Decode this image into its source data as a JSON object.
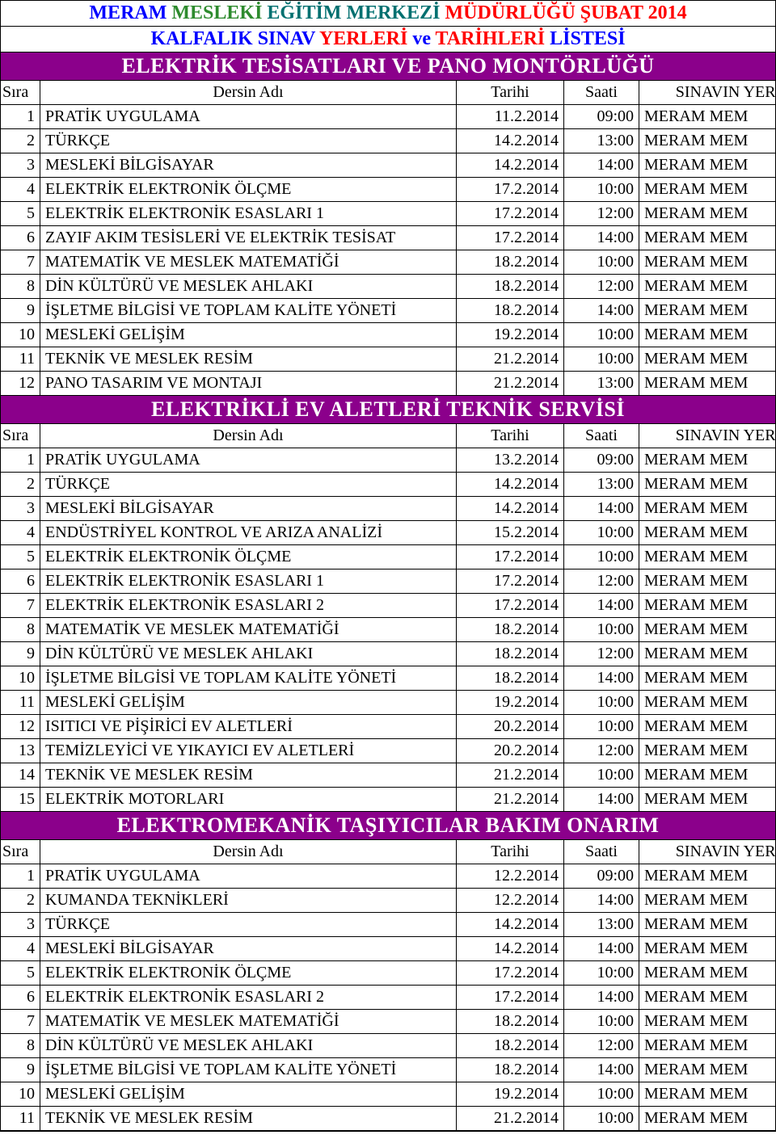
{
  "title": {
    "parts": [
      {
        "text": "MERAM",
        "cls": "title-a"
      },
      {
        "text": "MESLEKİ",
        "cls": "title-b"
      },
      {
        "text": "EĞİTİM MERKEZİ",
        "cls": "title-c"
      },
      {
        "text": "MÜDÜRLÜĞÜ",
        "cls": "title-d"
      },
      {
        "text": "ŞUBAT 2014",
        "cls": "title-e"
      }
    ]
  },
  "subtitle": {
    "parts": [
      {
        "text": "KALFALIK SINAV",
        "cls": "subtitle-a"
      },
      {
        "text": "YERLERİ",
        "cls": "subtitle-b"
      },
      {
        "text": "ve",
        "cls": "subtitle-c"
      },
      {
        "text": "TARİHLERİ",
        "cls": "subtitle-d"
      },
      {
        "text": "LİSTESİ",
        "cls": "subtitle-e"
      }
    ]
  },
  "header_labels": {
    "sira": "Sıra",
    "ders": "Dersin Adı",
    "tarih": "Tarihi",
    "saat": "Saati",
    "yeri": "SINAVIN YERİ"
  },
  "sections": [
    {
      "title": "ELEKTRİK TESİSATLARI VE PANO MONTÖRLÜĞÜ",
      "rows": [
        {
          "n": "1",
          "d": "PRATİK UYGULAMA",
          "t": "11.2.2014",
          "s": "09:00",
          "y": "MERAM MEM"
        },
        {
          "n": "2",
          "d": "TÜRKÇE",
          "t": "14.2.2014",
          "s": "13:00",
          "y": "MERAM MEM"
        },
        {
          "n": "3",
          "d": "MESLEKİ BİLGİSAYAR",
          "t": "14.2.2014",
          "s": "14:00",
          "y": "MERAM MEM"
        },
        {
          "n": "4",
          "d": "ELEKTRİK ELEKTRONİK ÖLÇME",
          "t": "17.2.2014",
          "s": "10:00",
          "y": "MERAM MEM"
        },
        {
          "n": "5",
          "d": "ELEKTRİK ELEKTRONİK ESASLARI 1",
          "t": "17.2.2014",
          "s": "12:00",
          "y": "MERAM MEM"
        },
        {
          "n": "6",
          "d": "ZAYIF AKIM TESİSLERİ VE ELEKTRİK TESİSAT",
          "t": "17.2.2014",
          "s": "14:00",
          "y": "MERAM MEM"
        },
        {
          "n": "7",
          "d": "MATEMATİK VE MESLEK MATEMATİĞİ",
          "t": "18.2.2014",
          "s": "10:00",
          "y": "MERAM MEM"
        },
        {
          "n": "8",
          "d": "DİN KÜLTÜRÜ VE MESLEK AHLAKI",
          "t": "18.2.2014",
          "s": "12:00",
          "y": "MERAM MEM"
        },
        {
          "n": "9",
          "d": "İŞLETME BİLGİSİ VE TOPLAM KALİTE YÖNETİ",
          "t": "18.2.2014",
          "s": "14:00",
          "y": "MERAM MEM"
        },
        {
          "n": "10",
          "d": "MESLEKİ GELİŞİM",
          "t": "19.2.2014",
          "s": "10:00",
          "y": "MERAM MEM"
        },
        {
          "n": "11",
          "d": "TEKNİK VE MESLEK RESİM",
          "t": "21.2.2014",
          "s": "10:00",
          "y": "MERAM MEM"
        },
        {
          "n": "12",
          "d": "PANO TASARIM VE MONTAJI",
          "t": "21.2.2014",
          "s": "13:00",
          "y": "MERAM MEM"
        }
      ]
    },
    {
      "title": "ELEKTRİKLİ EV ALETLERİ TEKNİK SERVİSİ",
      "rows": [
        {
          "n": "1",
          "d": "PRATİK UYGULAMA",
          "t": "13.2.2014",
          "s": "09:00",
          "y": "MERAM MEM"
        },
        {
          "n": "2",
          "d": "TÜRKÇE",
          "t": "14.2.2014",
          "s": "13:00",
          "y": "MERAM MEM"
        },
        {
          "n": "3",
          "d": "MESLEKİ BİLGİSAYAR",
          "t": "14.2.2014",
          "s": "14:00",
          "y": "MERAM MEM"
        },
        {
          "n": "4",
          "d": "ENDÜSTRİYEL KONTROL VE ARIZA ANALİZİ",
          "t": "15.2.2014",
          "s": "10:00",
          "y": "MERAM MEM"
        },
        {
          "n": "5",
          "d": "ELEKTRİK ELEKTRONİK ÖLÇME",
          "t": "17.2.2014",
          "s": "10:00",
          "y": "MERAM MEM"
        },
        {
          "n": "6",
          "d": "ELEKTRİK ELEKTRONİK ESASLARI 1",
          "t": "17.2.2014",
          "s": "12:00",
          "y": "MERAM MEM"
        },
        {
          "n": "7",
          "d": "ELEKTRİK ELEKTRONİK ESASLARI 2",
          "t": "17.2.2014",
          "s": "14:00",
          "y": "MERAM MEM"
        },
        {
          "n": "8",
          "d": "MATEMATİK VE MESLEK MATEMATİĞİ",
          "t": "18.2.2014",
          "s": "10:00",
          "y": "MERAM MEM"
        },
        {
          "n": "9",
          "d": "DİN KÜLTÜRÜ VE MESLEK AHLAKI",
          "t": "18.2.2014",
          "s": "12:00",
          "y": "MERAM MEM"
        },
        {
          "n": "10",
          "d": "İŞLETME BİLGİSİ VE TOPLAM KALİTE YÖNETİ",
          "t": "18.2.2014",
          "s": "14:00",
          "y": "MERAM MEM"
        },
        {
          "n": "11",
          "d": "MESLEKİ GELİŞİM",
          "t": "19.2.2014",
          "s": "10:00",
          "y": "MERAM MEM"
        },
        {
          "n": "12",
          "d": "ISITICI VE PİŞİRİCİ EV ALETLERİ",
          "t": "20.2.2014",
          "s": "10:00",
          "y": "MERAM MEM"
        },
        {
          "n": "13",
          "d": "TEMİZLEYİCİ VE YIKAYICI EV ALETLERİ",
          "t": "20.2.2014",
          "s": "12:00",
          "y": "MERAM MEM"
        },
        {
          "n": "14",
          "d": "TEKNİK VE MESLEK RESİM",
          "t": "21.2.2014",
          "s": "10:00",
          "y": "MERAM MEM"
        },
        {
          "n": "15",
          "d": "ELEKTRİK MOTORLARI",
          "t": "21.2.2014",
          "s": "14:00",
          "y": "MERAM MEM"
        }
      ]
    },
    {
      "title": "ELEKTROMEKANİK TAŞIYICILAR BAKIM ONARIM",
      "rows": [
        {
          "n": "1",
          "d": "PRATİK UYGULAMA",
          "t": "12.2.2014",
          "s": "09:00",
          "y": "MERAM MEM"
        },
        {
          "n": "2",
          "d": "KUMANDA TEKNİKLERİ",
          "t": "12.2.2014",
          "s": "14:00",
          "y": "MERAM MEM"
        },
        {
          "n": "3",
          "d": "TÜRKÇE",
          "t": "14.2.2014",
          "s": "13:00",
          "y": "MERAM MEM"
        },
        {
          "n": "4",
          "d": "MESLEKİ BİLGİSAYAR",
          "t": "14.2.2014",
          "s": "14:00",
          "y": "MERAM MEM"
        },
        {
          "n": "5",
          "d": "ELEKTRİK ELEKTRONİK ÖLÇME",
          "t": "17.2.2014",
          "s": "10:00",
          "y": "MERAM MEM"
        },
        {
          "n": "6",
          "d": "ELEKTRİK ELEKTRONİK ESASLARI 2",
          "t": "17.2.2014",
          "s": "14:00",
          "y": "MERAM MEM"
        },
        {
          "n": "7",
          "d": "MATEMATİK VE MESLEK MATEMATİĞİ",
          "t": "18.2.2014",
          "s": "10:00",
          "y": "MERAM MEM"
        },
        {
          "n": "8",
          "d": "DİN KÜLTÜRÜ VE MESLEK AHLAKI",
          "t": "18.2.2014",
          "s": "12:00",
          "y": "MERAM MEM"
        },
        {
          "n": "9",
          "d": "İŞLETME BİLGİSİ VE TOPLAM KALİTE YÖNETİ",
          "t": "18.2.2014",
          "s": "14:00",
          "y": "MERAM MEM"
        },
        {
          "n": "10",
          "d": "MESLEKİ GELİŞİM",
          "t": "19.2.2014",
          "s": "10:00",
          "y": "MERAM MEM"
        },
        {
          "n": "11",
          "d": "TEKNİK VE MESLEK RESİM",
          "t": "21.2.2014",
          "s": "10:00",
          "y": "MERAM MEM"
        }
      ]
    }
  ]
}
